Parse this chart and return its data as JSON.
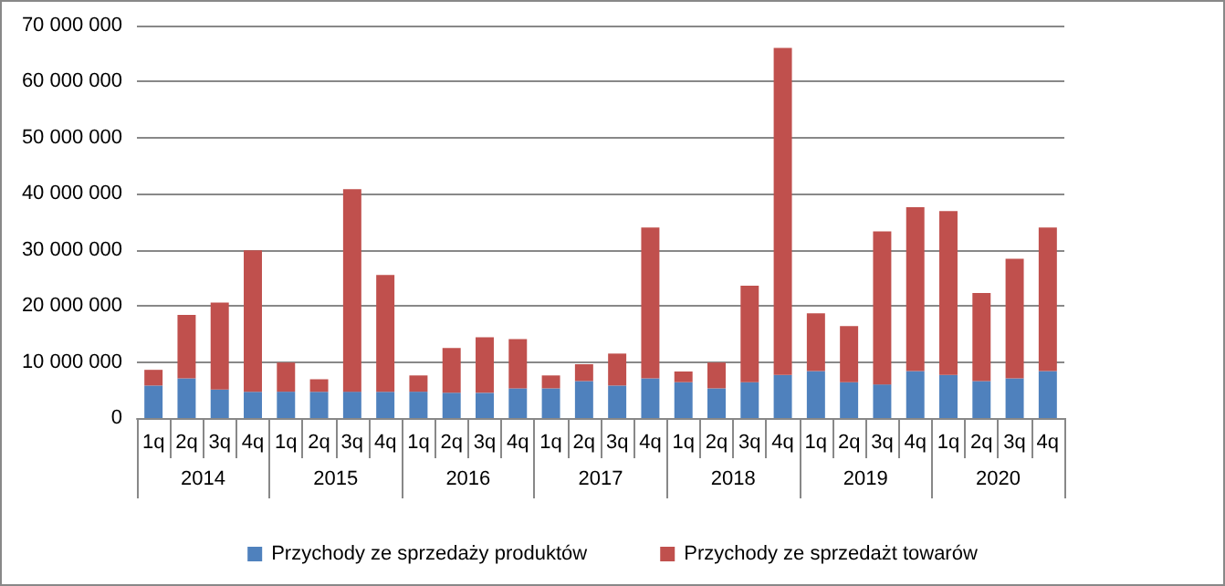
{
  "chart_data": {
    "type": "bar",
    "stacked": true,
    "categories": [
      "1q",
      "2q",
      "3q",
      "4q",
      "1q",
      "2q",
      "3q",
      "4q",
      "1q",
      "2q",
      "3q",
      "4q",
      "1q",
      "2q",
      "3q",
      "4q",
      "1q",
      "2q",
      "3q",
      "4q",
      "1q",
      "2q",
      "3q",
      "4q",
      "1q",
      "2q",
      "3q",
      "4q"
    ],
    "annotations": [
      "2014",
      "2015",
      "2016",
      "2017",
      "2018",
      "2019",
      "2020"
    ],
    "series": [
      {
        "name": "Przychody ze sprzedaży produktów",
        "color": "#4f81bd",
        "values": [
          5800000,
          7100000,
          5100000,
          4700000,
          4700000,
          4700000,
          4700000,
          4700000,
          4700000,
          4500000,
          4500000,
          5300000,
          5300000,
          6600000,
          5800000,
          7100000,
          6400000,
          5300000,
          6400000,
          7700000,
          8400000,
          6400000,
          6000000,
          8400000,
          7700000,
          6600000,
          7100000,
          8400000
        ]
      },
      {
        "name": "Przychody ze sprzedażt towarów",
        "color": "#c0504d",
        "values": [
          2800000,
          11300000,
          15500000,
          25200000,
          5200000,
          2200000,
          36100000,
          20800000,
          2900000,
          8000000,
          9900000,
          8800000,
          2300000,
          3000000,
          5700000,
          26900000,
          1900000,
          4600000,
          17200000,
          58300000,
          10300000,
          10000000,
          27300000,
          29200000,
          29200000,
          15700000,
          21300000,
          25600000
        ]
      }
    ],
    "ylim": [
      0,
      70000000
    ],
    "yticks": [
      {
        "value": 0,
        "label": "0"
      },
      {
        "value": 10000000,
        "label": "10 000 000"
      },
      {
        "value": 20000000,
        "label": "20 000 000"
      },
      {
        "value": 30000000,
        "label": "30 000 000"
      },
      {
        "value": 40000000,
        "label": "40 000 000"
      },
      {
        "value": 50000000,
        "label": "50 000 000"
      },
      {
        "value": 60000000,
        "label": "60 000 000"
      },
      {
        "value": 70000000,
        "label": "70 000 000"
      }
    ],
    "grid": "y",
    "legend": "bottom"
  }
}
